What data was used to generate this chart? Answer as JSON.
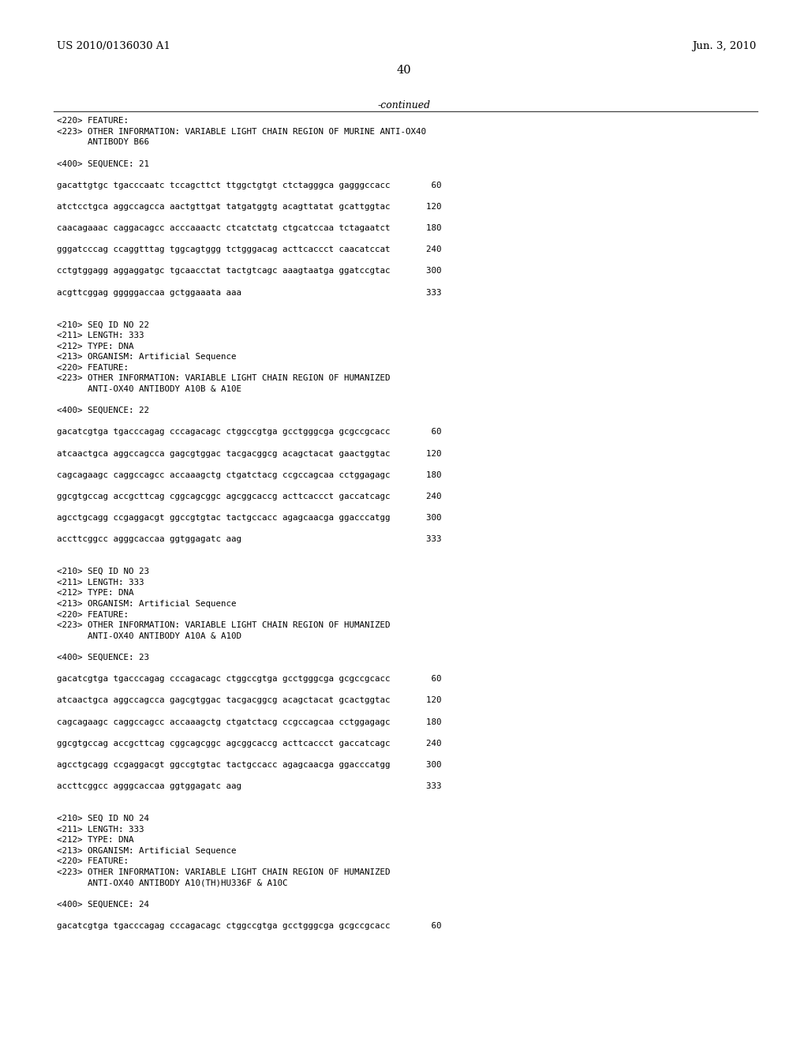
{
  "header_left": "US 2010/0136030 A1",
  "header_right": "Jun. 3, 2010",
  "page_number": "40",
  "continued_text": "-continued",
  "background_color": "#ffffff",
  "text_color": "#000000",
  "font_size_header": 9.5,
  "font_size_page": 10.5,
  "font_size_body": 7.8,
  "lines": [
    "<220> FEATURE:",
    "<223> OTHER INFORMATION: VARIABLE LIGHT CHAIN REGION OF MURINE ANTI-OX40",
    "      ANTIBODY B66",
    "",
    "<400> SEQUENCE: 21",
    "",
    "gacattgtgc tgacccaatc tccagcttct ttggctgtgt ctctagggca gagggccacc        60",
    "",
    "atctcctgca aggccagcca aactgttgat tatgatggtg acagttatat gcattggtac       120",
    "",
    "caacagaaac caggacagcc acccaaactc ctcatctatg ctgcatccaa tctagaatct       180",
    "",
    "gggatcccag ccaggtttag tggcagtggg tctgggacag acttcaccct caacatccat       240",
    "",
    "cctgtggagg aggaggatgc tgcaacctat tactgtcagc aaagtaatga ggatccgtac       300",
    "",
    "acgttcggag gggggaccaa gctggaaata aaa                                    333",
    "",
    "",
    "<210> SEQ ID NO 22",
    "<211> LENGTH: 333",
    "<212> TYPE: DNA",
    "<213> ORGANISM: Artificial Sequence",
    "<220> FEATURE:",
    "<223> OTHER INFORMATION: VARIABLE LIGHT CHAIN REGION OF HUMANIZED",
    "      ANTI-OX40 ANTIBODY A10B & A10E",
    "",
    "<400> SEQUENCE: 22",
    "",
    "gacatcgtga tgacccagag cccagacagc ctggccgtga gcctgggcga gcgccgcacc        60",
    "",
    "atcaactgca aggccagcca gagcgtggac tacgacggcg acagctacat gaactggtac       120",
    "",
    "cagcagaagc caggccagcc accaaagctg ctgatctacg ccgccagcaa cctggagagc       180",
    "",
    "ggcgtgccag accgcttcag cggcagcggc agcggcaccg acttcaccct gaccatcagc       240",
    "",
    "agcctgcagg ccgaggacgt ggccgtgtac tactgccacc agagcaacga ggacccatgg       300",
    "",
    "accttcggcc agggcaccaa ggtggagatc aag                                    333",
    "",
    "",
    "<210> SEQ ID NO 23",
    "<211> LENGTH: 333",
    "<212> TYPE: DNA",
    "<213> ORGANISM: Artificial Sequence",
    "<220> FEATURE:",
    "<223> OTHER INFORMATION: VARIABLE LIGHT CHAIN REGION OF HUMANIZED",
    "      ANTI-OX40 ANTIBODY A10A & A10D",
    "",
    "<400> SEQUENCE: 23",
    "",
    "gacatcgtga tgacccagag cccagacagc ctggccgtga gcctgggcga gcgccgcacc        60",
    "",
    "atcaactgca aggccagcca gagcgtggac tacgacggcg acagctacat gcactggtac       120",
    "",
    "cagcagaagc caggccagcc accaaagctg ctgatctacg ccgccagcaa cctggagagc       180",
    "",
    "ggcgtgccag accgcttcag cggcagcggc agcggcaccg acttcaccct gaccatcagc       240",
    "",
    "agcctgcagg ccgaggacgt ggccgtgtac tactgccacc agagcaacga ggacccatgg       300",
    "",
    "accttcggcc agggcaccaa ggtggagatc aag                                    333",
    "",
    "",
    "<210> SEQ ID NO 24",
    "<211> LENGTH: 333",
    "<212> TYPE: DNA",
    "<213> ORGANISM: Artificial Sequence",
    "<220> FEATURE:",
    "<223> OTHER INFORMATION: VARIABLE LIGHT CHAIN REGION OF HUMANIZED",
    "      ANTI-OX40 ANTIBODY A10(TH)HU336F & A10C",
    "",
    "<400> SEQUENCE: 24",
    "",
    "gacatcgtga tgacccagag cccagacagc ctggccgtga gcctgggcga gcgccgcacc        60"
  ]
}
